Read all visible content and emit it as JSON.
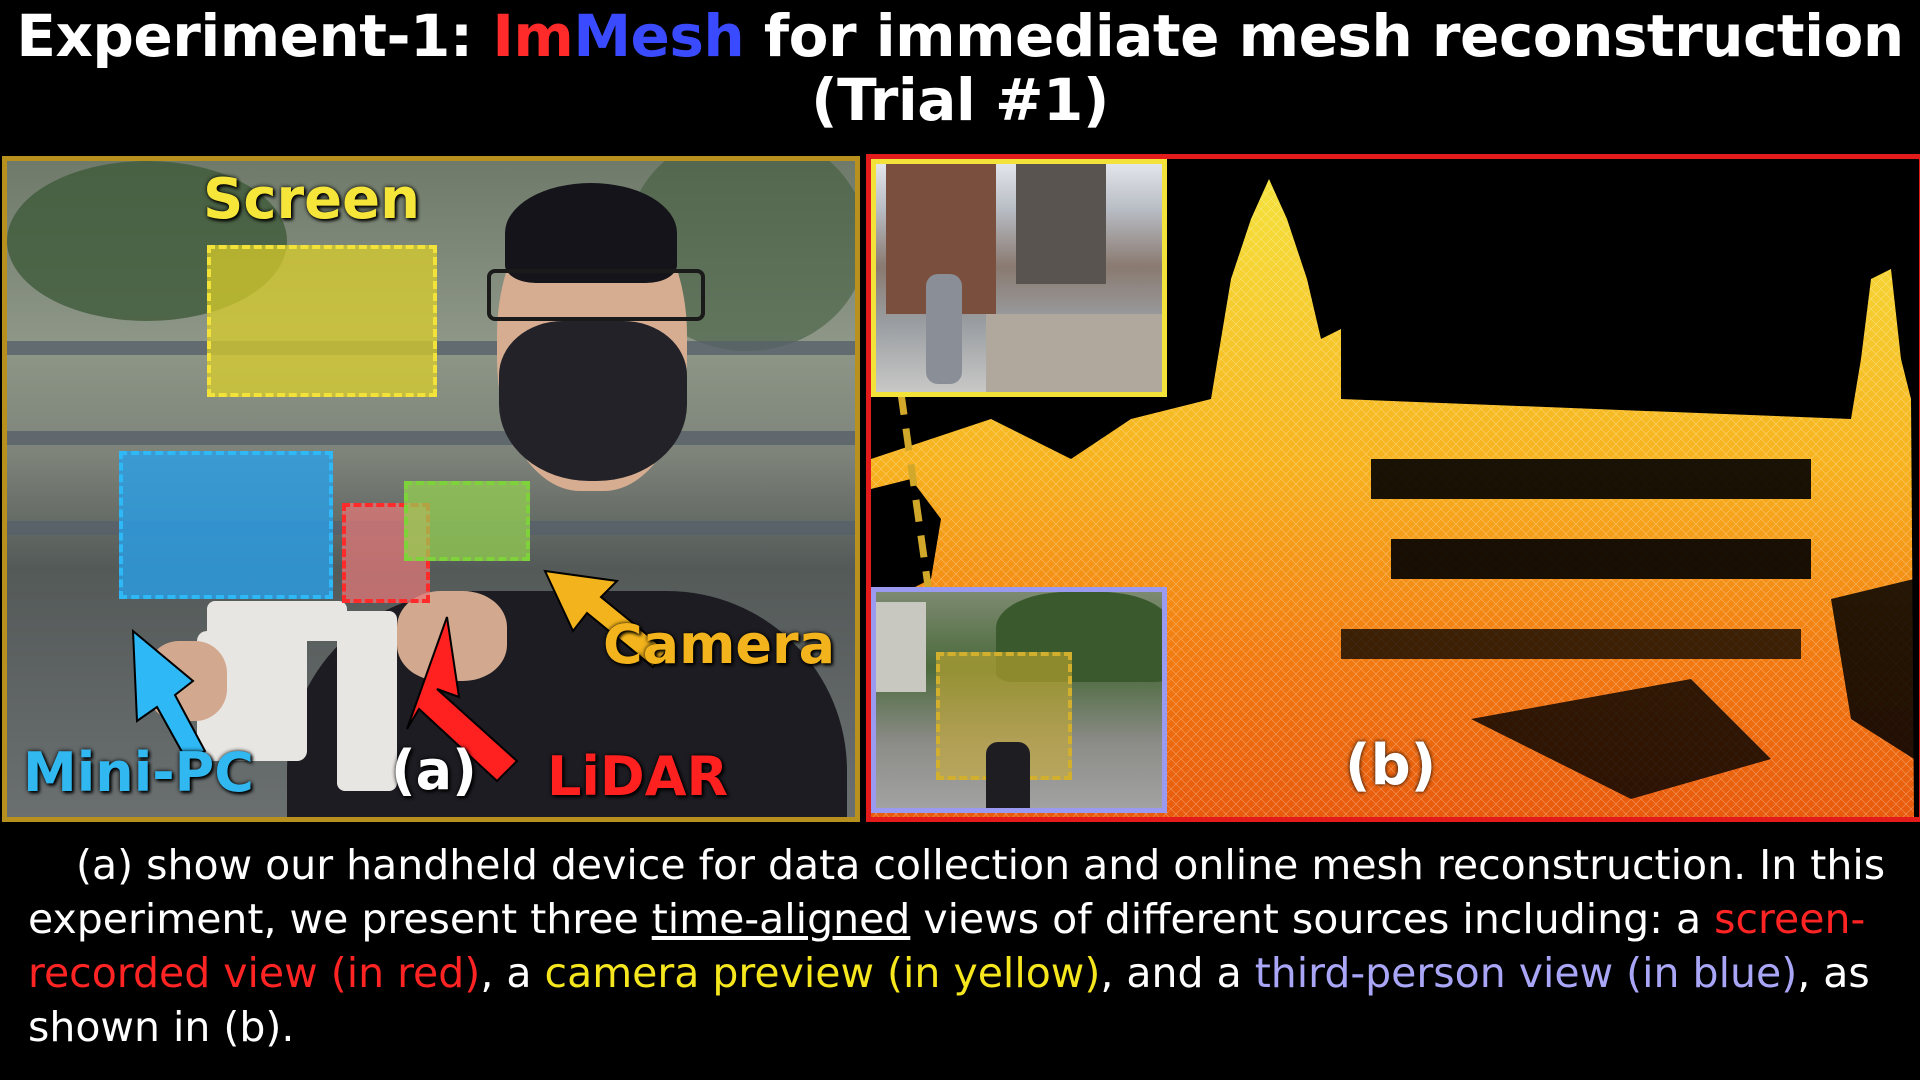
{
  "title": {
    "line1_prefix": "Experiment-1: ",
    "name_part1": "Im",
    "name_part2": "Mesh",
    "line1_suffix": " for immediate mesh reconstruction",
    "line2": "(Trial #1)",
    "colors": {
      "im": "#ff2a2a",
      "mesh": "#3a4bff"
    }
  },
  "panel_a": {
    "labels": {
      "screen": "Screen",
      "minipc": "Mini-PC",
      "panel_tag": "(a)",
      "lidar": "LiDAR",
      "camera": "Camera"
    },
    "colors": {
      "screen": "#f2e23a",
      "minipc": "#2eb8f5",
      "lidar": "#ff2a2a",
      "camera": "#7ed33a",
      "border": "#b8901e"
    }
  },
  "panel_b": {
    "panel_tag": "(b)",
    "colors": {
      "border": "#e31b1b",
      "camera_preview_border": "#f2e23a",
      "third_person_border": "#9a9af0"
    }
  },
  "caption": {
    "part1": "(a) show our handheld device for data collection and online mesh reconstruction. In this experiment, we present three ",
    "underlined": "time-aligned",
    "part2": " views of different sources including: a ",
    "red": "screen-recorded view (in red)",
    "part3": ", a ",
    "yellow": "camera preview (in yellow)",
    "part4": ", and a ",
    "blue": "third-person view (in blue)",
    "part5": ", as shown in (b)."
  }
}
